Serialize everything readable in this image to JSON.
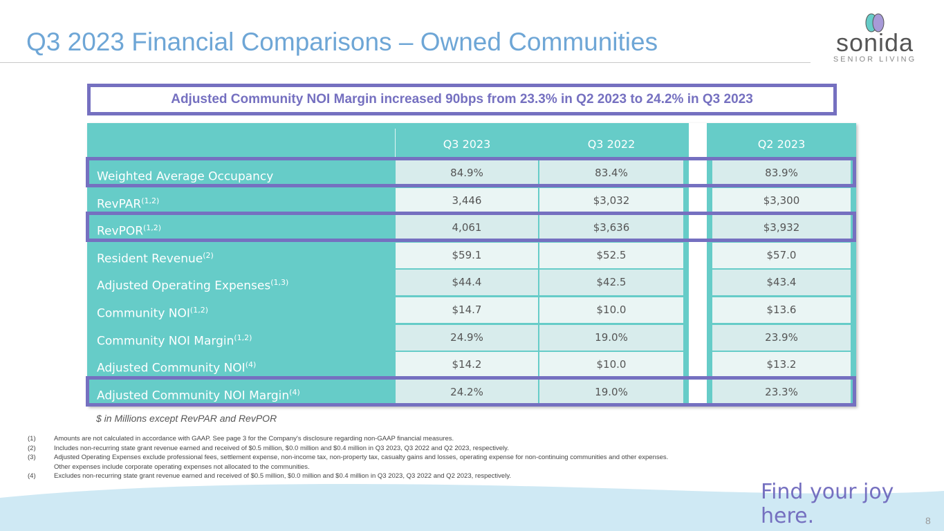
{
  "title": "Q3 2023 Financial Comparisons – Owned Communities",
  "logo": {
    "word": "sonida",
    "sub": "SENIOR LIVING"
  },
  "banner": "Adjusted Community NOI Margin increased 90bps from 23.3% in Q2 2023 to 24.2% in Q3 2023",
  "table": {
    "headers": [
      "Q3 2023",
      "Q3 2022",
      "Q2 2023"
    ],
    "rows": [
      {
        "label": "Weighted Average Occupancy",
        "sup": "",
        "values": [
          "84.9%",
          "83.4%",
          "83.9%"
        ],
        "highlighted": true
      },
      {
        "label": "RevPAR",
        "sup": "(1,2)",
        "values": [
          "3,446",
          "$3,032",
          "$3,300"
        ],
        "highlighted": false
      },
      {
        "label": "RevPOR",
        "sup": "(1,2)",
        "values": [
          "4,061",
          "$3,636",
          "$3,932"
        ],
        "highlighted": true
      },
      {
        "label": "Resident Revenue",
        "sup": "(2)",
        "values": [
          "$59.1",
          "$52.5",
          "$57.0"
        ],
        "highlighted": false
      },
      {
        "label": "Adjusted Operating Expenses",
        "sup": "(1,3)",
        "values": [
          "$44.4",
          "$42.5",
          "$43.4"
        ],
        "highlighted": false
      },
      {
        "label": "Community NOI",
        "sup": "(1,2)",
        "values": [
          "$14.7",
          "$10.0",
          "$13.6"
        ],
        "highlighted": false
      },
      {
        "label": "Community NOI Margin",
        "sup": "(1,2)",
        "values": [
          "24.9%",
          "19.0%",
          "23.9%"
        ],
        "highlighted": false
      },
      {
        "label": "Adjusted Community NOI",
        "sup": "(4)",
        "values": [
          "$14.2",
          "$10.0",
          "$13.2"
        ],
        "highlighted": false
      },
      {
        "label": "Adjusted Community NOI Margin",
        "sup": "(4)",
        "values": [
          "24.2%",
          "19.0%",
          "23.3%"
        ],
        "highlighted": true
      }
    ]
  },
  "note": "$ in Millions except RevPAR and RevPOR",
  "footnotes": [
    {
      "n": "(1)",
      "t": "Amounts are not calculated in accordance with GAAP. See page 3 for the Company's disclosure regarding non-GAAP financial measures."
    },
    {
      "n": "(2)",
      "t": "Includes non-recurring state grant revenue earned and received of $0.5 million, $0.0 million and $0.4 million in Q3 2023, Q3 2022 and Q2 2023, respectively."
    },
    {
      "n": "(3)",
      "t": "Adjusted Operating Expenses exclude professional fees, settlement expense, non-income tax, non-property tax, casualty gains and losses, operating expense for non-continuing communities and other expenses."
    },
    {
      "n": "",
      "t": "Other expenses include corporate operating expenses not allocated to the communities."
    },
    {
      "n": "(4)",
      "t": "Excludes non-recurring state grant revenue earned and received of $0.5 million, $0.0 million and $0.4 million  in Q3 2023, Q3 2022 and Q2 2023, respectively."
    }
  ],
  "tagline": "Find your joy here.",
  "page": "8",
  "colors": {
    "teal": "#66ccc8",
    "purple": "#7570c0",
    "title": "#6ea6d6"
  }
}
